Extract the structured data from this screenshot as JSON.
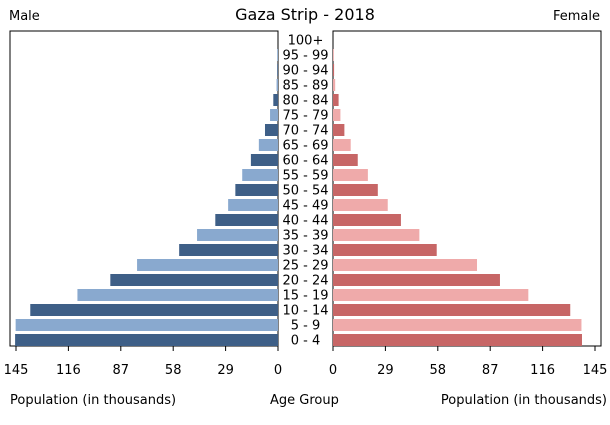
{
  "chart_data": {
    "type": "bar",
    "title": "Gaza Strip - 2018",
    "left_label": "Male",
    "right_label": "Female",
    "xlabel_left": "Population (in thousands)",
    "xlabel_center": "Age Group",
    "xlabel_right": "Population (in thousands)",
    "xlim": [
      0,
      145
    ],
    "male_ticks": [
      "145",
      "116",
      "87",
      "58",
      "29",
      "0"
    ],
    "female_ticks": [
      "0",
      "29",
      "58",
      "87",
      "116",
      "145"
    ],
    "tick_values": [
      0,
      29,
      58,
      87,
      116,
      145
    ],
    "categories": [
      "0 - 4",
      "5 - 9",
      "10 - 14",
      "15 - 19",
      "20 - 24",
      "25 - 29",
      "30 - 34",
      "35 - 39",
      "40 - 44",
      "45 - 49",
      "50 - 54",
      "55 - 59",
      "60 - 64",
      "65 - 69",
      "70 - 74",
      "75 - 79",
      "80 - 84",
      "85 - 89",
      "90 - 94",
      "95 - 99",
      "100+"
    ],
    "series": [
      {
        "name": "Male",
        "values": [
          145.5,
          145.2,
          137.1,
          111.0,
          92.8,
          78.0,
          54.7,
          44.8,
          34.7,
          27.6,
          23.6,
          19.8,
          15.0,
          10.6,
          7.2,
          4.4,
          2.6,
          0.8,
          0.4,
          0.1,
          0.0
        ]
      },
      {
        "name": "Female",
        "values": [
          137.8,
          137.5,
          131.3,
          108.1,
          92.4,
          79.7,
          57.4,
          47.8,
          37.6,
          30.3,
          24.8,
          19.3,
          13.7,
          9.8,
          6.3,
          4.1,
          3.1,
          1.2,
          0.6,
          0.2,
          0.0
        ]
      }
    ],
    "colors": {
      "male_dark": "#3e5f87",
      "male_light": "#89a9cf",
      "female_dark": "#c76666",
      "female_light": "#efaaaa"
    },
    "grid": false
  }
}
